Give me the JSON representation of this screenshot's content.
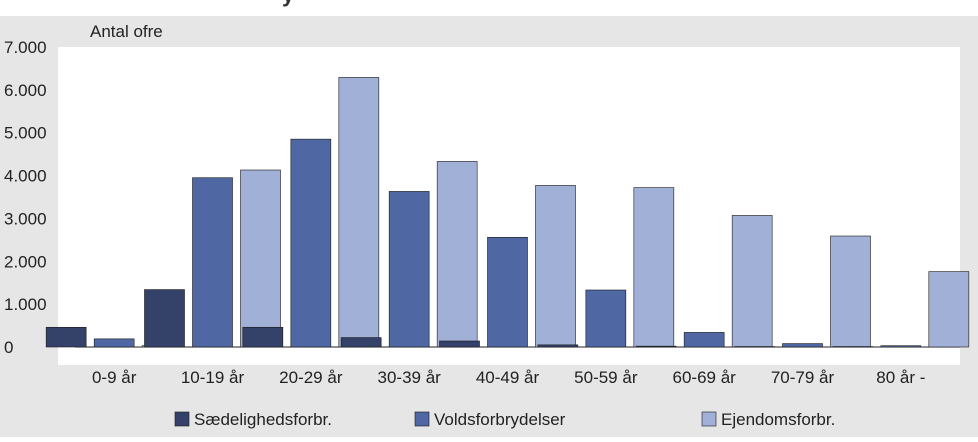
{
  "chart_data": {
    "type": "bar",
    "title": "",
    "ylabel": "Antal ofre",
    "xlabel": "",
    "ylim": [
      0,
      7000
    ],
    "yticks": [
      0,
      1000,
      2000,
      3000,
      4000,
      5000,
      6000,
      7000
    ],
    "ytick_labels": [
      "0",
      "1.000",
      "2.000",
      "3.000",
      "4.000",
      "5.000",
      "6.000",
      "7.000"
    ],
    "grid": false,
    "legend_position": "bottom",
    "categories": [
      "0-9 år",
      "10-19 år",
      "20-29 år",
      "30-39 år",
      "40-49 år",
      "50-59 år",
      "60-69 år",
      "70-79 år",
      "80 år -"
    ],
    "series": [
      {
        "name": "Sædelighedsforbr.",
        "color": "#34426a",
        "values": [
          460,
          1340,
          460,
          220,
          140,
          50,
          20,
          10,
          10
        ]
      },
      {
        "name": "Voldsforbrydelser",
        "color": "#4f67a3",
        "values": [
          190,
          3950,
          4850,
          3630,
          2560,
          1330,
          340,
          80,
          30
        ]
      },
      {
        "name": "Ejendomsforbr.",
        "color": "#a1b0d6",
        "values": [
          30,
          4130,
          6290,
          4330,
          3770,
          3720,
          3070,
          2590,
          1760
        ]
      }
    ]
  }
}
